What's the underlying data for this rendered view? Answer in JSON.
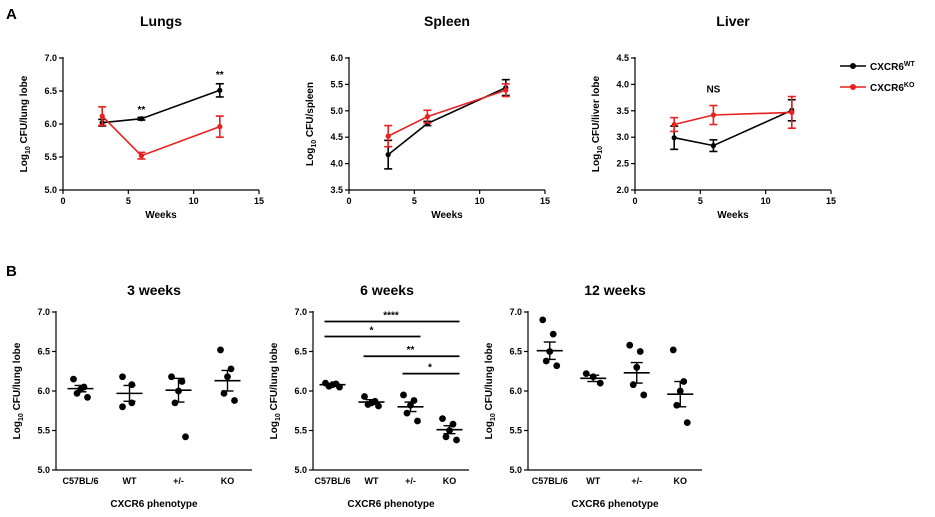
{
  "panel_letters": [
    "A",
    "B"
  ],
  "legend": {
    "items": [
      {
        "base": "CXCR6",
        "sup": "WT",
        "color": "#000000"
      },
      {
        "base": "CXCR6",
        "sup": "KO",
        "color": "#e8201f"
      }
    ]
  },
  "colors": {
    "wt": "#000000",
    "ko": "#e8201f",
    "axis": "#000000"
  },
  "chart_data": [
    {
      "type": "line",
      "title": "Lungs",
      "xlabel": "Weeks",
      "ylabel": {
        "prefix": "Log",
        "sub": "10",
        "suffix": " CFU/lung lobe"
      },
      "xlim": [
        0,
        15
      ],
      "xticks": [
        0,
        5,
        10,
        15
      ],
      "ylim": [
        5.0,
        7.0
      ],
      "yticks": [
        5.0,
        5.5,
        6.0,
        6.5,
        7.0
      ],
      "ydecimals": 1,
      "series": [
        {
          "name": "CXCR6WT",
          "color": "#000000",
          "x": [
            3,
            6,
            12
          ],
          "y": [
            6.02,
            6.08,
            6.51
          ],
          "err": [
            0.05,
            0.02,
            0.1
          ]
        },
        {
          "name": "CXCR6KO",
          "color": "#e8201f",
          "x": [
            3,
            6,
            12
          ],
          "y": [
            6.12,
            5.52,
            5.96
          ],
          "err": [
            0.14,
            0.05,
            0.16
          ]
        }
      ],
      "annotations": [
        {
          "text": "**",
          "x": 6,
          "y": 6.17
        },
        {
          "text": "**",
          "x": 12,
          "y": 6.7
        }
      ]
    },
    {
      "type": "line",
      "title": "Spleen",
      "xlabel": "Weeks",
      "ylabel": {
        "prefix": "Log",
        "sub": "10",
        "suffix": " CFU/spleen"
      },
      "xlim": [
        0,
        15
      ],
      "xticks": [
        0,
        5,
        10,
        15
      ],
      "ylim": [
        3.5,
        6.0
      ],
      "yticks": [
        3.5,
        4.0,
        4.5,
        5.0,
        5.5,
        6.0
      ],
      "ydecimals": 1,
      "series": [
        {
          "name": "CXCR6WT",
          "color": "#000000",
          "x": [
            3,
            6,
            12
          ],
          "y": [
            4.17,
            4.76,
            5.44
          ],
          "err": [
            0.27,
            0.04,
            0.15
          ]
        },
        {
          "name": "CXCR6KO",
          "color": "#e8201f",
          "x": [
            3,
            6,
            12
          ],
          "y": [
            4.52,
            4.89,
            5.39
          ],
          "err": [
            0.2,
            0.12,
            0.12
          ]
        }
      ],
      "annotations": []
    },
    {
      "type": "line",
      "title": "Liver",
      "xlabel": "Weeks",
      "ylabel": {
        "prefix": "Log",
        "sub": "10",
        "suffix": " CFU/liver lobe"
      },
      "xlim": [
        0,
        15
      ],
      "xticks": [
        0,
        5,
        10,
        15
      ],
      "ylim": [
        2.0,
        4.5
      ],
      "yticks": [
        2.0,
        2.5,
        3.0,
        3.5,
        4.0,
        4.5
      ],
      "ydecimals": 1,
      "series": [
        {
          "name": "CXCR6WT",
          "color": "#000000",
          "x": [
            3,
            6,
            12
          ],
          "y": [
            2.99,
            2.84,
            3.51
          ],
          "err": [
            0.22,
            0.11,
            0.2
          ]
        },
        {
          "name": "CXCR6KO",
          "color": "#e8201f",
          "x": [
            3,
            6,
            12
          ],
          "y": [
            3.24,
            3.42,
            3.47
          ],
          "err": [
            0.13,
            0.18,
            0.3
          ]
        }
      ],
      "annotations": [
        {
          "text": "NS",
          "x": 6,
          "y": 3.85
        }
      ]
    },
    {
      "type": "scatter",
      "title": "3 weeks",
      "xlabel": "CXCR6 phenotype",
      "ylabel": {
        "prefix": "Log",
        "sub": "10",
        "suffix": " CFU/lung lobe"
      },
      "categories": [
        "C57BL/6",
        "WT",
        "+/-",
        "KO"
      ],
      "ylim": [
        5.0,
        7.0
      ],
      "yticks": [
        5.0,
        5.5,
        6.0,
        6.5,
        7.0
      ],
      "ydecimals": 1,
      "groups": [
        {
          "points": [
            6.15,
            6.05,
            6.02,
            5.97,
            5.92
          ],
          "mean": 6.03,
          "sem": 0.04
        },
        {
          "points": [
            6.18,
            6.08,
            5.85,
            5.8
          ],
          "mean": 5.97,
          "sem": 0.1
        },
        {
          "points": [
            6.18,
            6.12,
            6.0,
            5.85,
            5.42
          ],
          "mean": 6.01,
          "sem": 0.15
        },
        {
          "points": [
            6.52,
            6.28,
            6.18,
            5.97,
            5.88
          ],
          "mean": 6.13,
          "sem": 0.13
        }
      ],
      "brackets": []
    },
    {
      "type": "scatter",
      "title": "6 weeks",
      "xlabel": "CXCR6 phenotype",
      "ylabel": {
        "prefix": "Log",
        "sub": "10",
        "suffix": " CFU/lung lobe"
      },
      "categories": [
        "C57BL/6",
        "WT",
        "+/-",
        "KO"
      ],
      "ylim": [
        5.0,
        7.0
      ],
      "yticks": [
        5.0,
        5.5,
        6.0,
        6.5,
        7.0
      ],
      "ydecimals": 1,
      "groups": [
        {
          "points": [
            6.1,
            6.09,
            6.08,
            6.06,
            6.05
          ],
          "mean": 6.08,
          "sem": 0.01
        },
        {
          "points": [
            5.93,
            5.87,
            5.85,
            5.83,
            5.81
          ],
          "mean": 5.86,
          "sem": 0.03
        },
        {
          "points": [
            5.95,
            5.88,
            5.82,
            5.72,
            5.62
          ],
          "mean": 5.8,
          "sem": 0.06
        },
        {
          "points": [
            5.65,
            5.58,
            5.5,
            5.42,
            5.38
          ],
          "mean": 5.51,
          "sem": 0.05
        }
      ],
      "brackets": [
        {
          "from": 0,
          "to": 3,
          "y": 6.88,
          "label": "****"
        },
        {
          "from": 0,
          "to": 2,
          "y": 6.69,
          "label": "*"
        },
        {
          "from": 1,
          "to": 3,
          "y": 6.44,
          "label": "**"
        },
        {
          "from": 2,
          "to": 3,
          "y": 6.22,
          "label": "*"
        }
      ]
    },
    {
      "type": "scatter",
      "title": "12 weeks",
      "xlabel": "CXCR6 phenotype",
      "ylabel": {
        "prefix": "Log",
        "sub": "10",
        "suffix": " CFU/lung lobe"
      },
      "categories": [
        "C57BL/6",
        "WT",
        "+/-",
        "KO"
      ],
      "ylim": [
        5.0,
        7.0
      ],
      "yticks": [
        5.0,
        5.5,
        6.0,
        6.5,
        7.0
      ],
      "ydecimals": 1,
      "groups": [
        {
          "points": [
            6.9,
            6.72,
            6.5,
            6.38,
            6.32
          ],
          "mean": 6.51,
          "sem": 0.11
        },
        {
          "points": [
            6.22,
            6.18,
            6.1
          ],
          "mean": 6.16,
          "sem": 0.04
        },
        {
          "points": [
            6.58,
            6.5,
            6.3,
            6.08,
            5.95
          ],
          "mean": 6.23,
          "sem": 0.13
        },
        {
          "points": [
            6.52,
            6.12,
            6.0,
            5.82,
            5.6
          ],
          "mean": 5.96,
          "sem": 0.16
        }
      ],
      "brackets": []
    }
  ]
}
